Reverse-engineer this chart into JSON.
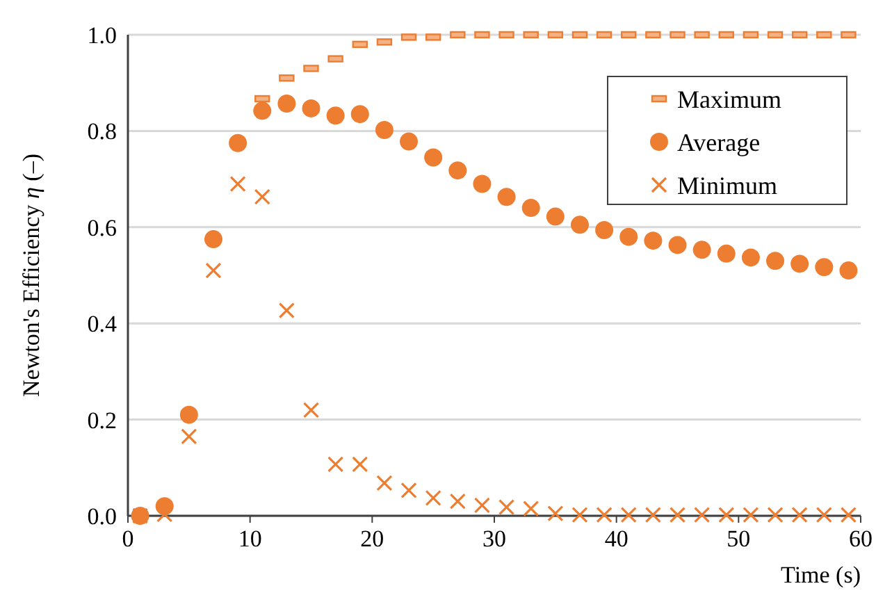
{
  "chart_data": {
    "type": "scatter",
    "xlabel": "Time (s)",
    "ylabel": "Newton's Efficiency η (–)",
    "x": [
      1,
      3,
      5,
      7,
      9,
      11,
      13,
      15,
      17,
      19,
      21,
      23,
      25,
      27,
      29,
      31,
      33,
      35,
      37,
      39,
      41,
      43,
      45,
      47,
      49,
      51,
      53,
      55,
      57,
      59
    ],
    "series": [
      {
        "name": "Maximum",
        "color": "#ed7d31",
        "marker": "square",
        "values": [
          null,
          null,
          null,
          null,
          null,
          0.867,
          0.91,
          0.93,
          0.95,
          0.98,
          0.985,
          0.995,
          0.995,
          1.0,
          1.0,
          1.0,
          1.0,
          1.0,
          1.0,
          1.0,
          1.0,
          1.0,
          1.0,
          1.0,
          1.0,
          1.0,
          1.0,
          1.0,
          1.0,
          1.0
        ]
      },
      {
        "name": "Average",
        "color": "#ed7d31",
        "marker": "circle",
        "values": [
          0,
          0.02,
          0.21,
          0.575,
          0.775,
          0.842,
          0.857,
          0.847,
          0.832,
          0.835,
          0.802,
          0.778,
          0.745,
          0.718,
          0.69,
          0.663,
          0.64,
          0.622,
          0.605,
          0.594,
          0.58,
          0.572,
          0.563,
          0.553,
          0.545,
          0.537,
          0.53,
          0.524,
          0.517,
          0.51
        ]
      },
      {
        "name": "Minimum",
        "color": "#ed7d31",
        "marker": "cross",
        "values": [
          0,
          0.003,
          0.165,
          0.51,
          0.69,
          0.663,
          0.427,
          0.22,
          0.107,
          0.107,
          0.068,
          0.053,
          0.037,
          0.03,
          0.022,
          0.018,
          0.015,
          0.005,
          0.002,
          0.002,
          0.002,
          0.002,
          0.002,
          0.002,
          0.002,
          0.002,
          0.002,
          0.002,
          0.002,
          0.002
        ]
      }
    ],
    "xlim": [
      0,
      60
    ],
    "xticks": [
      0,
      10,
      20,
      30,
      40,
      50,
      60
    ],
    "ylim": [
      0,
      1
    ],
    "yticks": [
      {
        "value": 0,
        "label": "0.0"
      },
      {
        "value": 0.2,
        "label": "0.2"
      },
      {
        "value": 0.4,
        "label": "0.4"
      },
      {
        "value": 0.6,
        "label": "0.6"
      },
      {
        "value": 0.8,
        "label": "0.8"
      },
      {
        "value": 1,
        "label": "1.0"
      }
    ],
    "grid": "y",
    "legend": "top right"
  }
}
